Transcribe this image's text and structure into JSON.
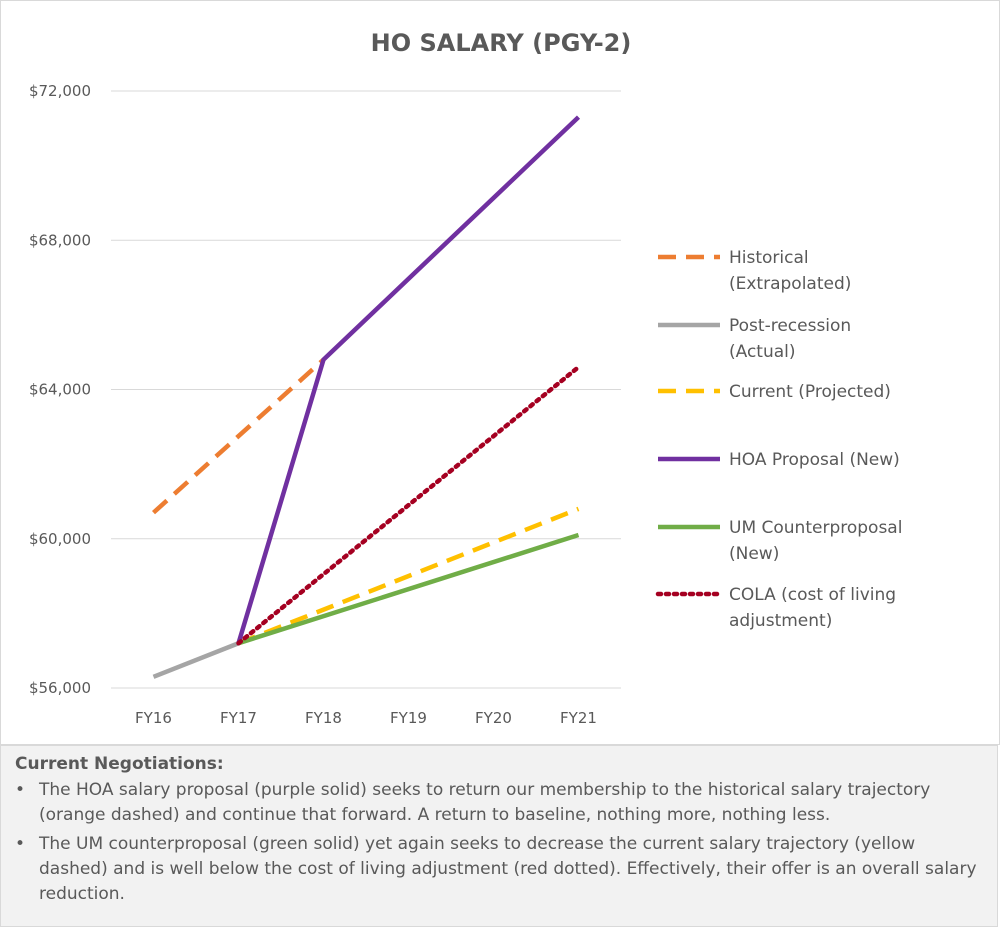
{
  "chart_data": {
    "type": "line",
    "title": "HO SALARY (PGY-2)",
    "xlabel": "",
    "ylabel": "",
    "categories": [
      "FY16",
      "FY17",
      "FY18",
      "FY19",
      "FY20",
      "FY21"
    ],
    "ylim": [
      56000,
      72000
    ],
    "y_ticks": [
      56000,
      60000,
      64000,
      68000,
      72000
    ],
    "y_tick_labels": [
      "$56,000",
      "$60,000",
      "$64,000",
      "$68,000",
      "$72,000"
    ],
    "grid": true,
    "legend_position": "right",
    "series": [
      {
        "name": "Historical (Extrapolated)",
        "color": "#ED7D31",
        "style": "dashed",
        "values": [
          60700,
          null,
          64800,
          null,
          null,
          null
        ]
      },
      {
        "name": "Post-recession (Actual)",
        "color": "#A5A5A5",
        "style": "solid",
        "values": [
          56300,
          57200,
          null,
          null,
          null,
          null
        ]
      },
      {
        "name": "Current (Projected)",
        "color": "#FFC000",
        "style": "dashed",
        "values": [
          null,
          57200,
          null,
          null,
          null,
          60800
        ]
      },
      {
        "name": "HOA Proposal (New)",
        "color": "#7030A0",
        "style": "solid",
        "values": [
          null,
          57200,
          64800,
          null,
          null,
          71300
        ]
      },
      {
        "name": "UM Counterproposal (New)",
        "color": "#70AD47",
        "style": "solid",
        "values": [
          null,
          57200,
          null,
          null,
          null,
          60100
        ]
      },
      {
        "name": "COLA (cost of living adjustment)",
        "color": "#A50021",
        "style": "dotted",
        "values": [
          null,
          57200,
          null,
          null,
          null,
          64600
        ]
      }
    ]
  },
  "notes": {
    "heading": "Current Negotiations:",
    "bullet": "•",
    "items": [
      "The HOA salary proposal (purple solid) seeks to return our membership to the historical salary trajectory (orange dashed) and continue that forward. A return to baseline, nothing more, nothing less.",
      "The UM counterproposal (green solid) yet again seeks to decrease the current salary trajectory (yellow dashed) and is well below the cost of living adjustment (red dotted). Effectively, their offer is an overall salary reduction."
    ]
  }
}
